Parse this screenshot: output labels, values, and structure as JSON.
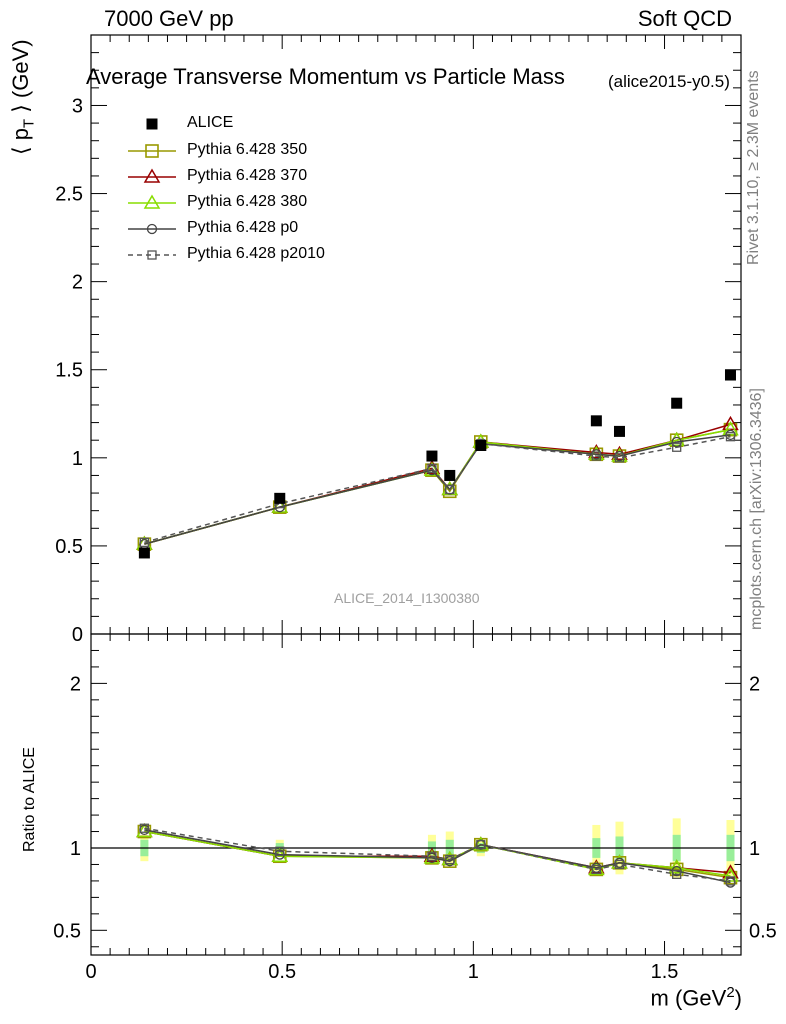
{
  "header": {
    "left": "7000 GeV pp",
    "right": "Soft QCD"
  },
  "title": "Average Transverse Momentum vs Particle Mass",
  "title_tag": "(alice2015-y0.5)",
  "side_text": {
    "rivet": "Rivet 3.1.10, ≥ 2.3M events",
    "mcplots": "mcplots.cern.ch [arXiv:1306.3436]"
  },
  "watermark": "ALICE_2014_I1300380",
  "chart_data": [
    {
      "type": "line",
      "panel": "main",
      "ylabel": "⟨ p_T ⟩ (GeV)",
      "ylim": [
        0,
        3.4
      ],
      "xlim": [
        0,
        1.7
      ],
      "yticks": [
        0,
        0.5,
        1,
        1.5,
        2,
        2.5,
        3
      ],
      "ytick_labels": [
        "0",
        "0.5",
        "1",
        "1.5",
        "2",
        "2.5",
        "3"
      ],
      "legend": {
        "placement": "top-left"
      },
      "x": [
        0.1396,
        0.4937,
        0.8917,
        0.9383,
        1.0195,
        1.3217,
        1.3822,
        1.5318,
        1.6725
      ],
      "data": {
        "name": "ALICE",
        "color": "#000000",
        "values": [
          0.46,
          0.77,
          1.01,
          0.9,
          1.07,
          1.21,
          1.15,
          1.31,
          1.47
        ]
      },
      "series": [
        {
          "name": "Pythia 6.428 350",
          "color": "#999900",
          "marker": "square-open",
          "dashed": false,
          "values": [
            0.51,
            0.72,
            0.93,
            0.81,
            1.09,
            1.02,
            1.01,
            1.1,
            1.16
          ]
        },
        {
          "name": "Pythia 6.428 370",
          "color": "#990000",
          "marker": "triangle-open",
          "dashed": false,
          "values": [
            0.51,
            0.72,
            0.94,
            0.82,
            1.09,
            1.03,
            1.02,
            1.1,
            1.19
          ]
        },
        {
          "name": "Pythia 6.428 380",
          "color": "#88dd00",
          "marker": "triangle-open",
          "dashed": false,
          "values": [
            0.51,
            0.72,
            0.93,
            0.82,
            1.09,
            1.02,
            1.01,
            1.1,
            1.16
          ]
        },
        {
          "name": "Pythia 6.428 p0",
          "color": "#444444",
          "marker": "circle-open",
          "dashed": false,
          "values": [
            0.51,
            0.72,
            0.93,
            0.82,
            1.08,
            1.02,
            1.01,
            1.09,
            1.13
          ]
        },
        {
          "name": "Pythia 6.428 p2010",
          "color": "#555555",
          "marker": "square-small-open",
          "dashed": true,
          "values": [
            0.52,
            0.74,
            0.94,
            0.82,
            1.08,
            1.01,
            1.0,
            1.06,
            1.12
          ]
        }
      ]
    },
    {
      "type": "line",
      "panel": "ratio",
      "ylabel": "Ratio to ALICE",
      "ylim": [
        0.35,
        2.3
      ],
      "yticks": [
        0.5,
        1,
        2
      ],
      "ytick_labels": [
        "0.5",
        "1",
        "2"
      ],
      "xlabel": "m (GeV²)",
      "xticks": [
        0,
        0.5,
        1,
        1.5
      ],
      "xtick_labels": [
        "0",
        "0.5",
        "1",
        "1.5"
      ],
      "x": [
        0.1396,
        0.4937,
        0.8917,
        0.9383,
        1.0195,
        1.3217,
        1.3822,
        1.5318,
        1.6725
      ],
      "band_inner": [
        0.05,
        0.03,
        0.04,
        0.05,
        0.03,
        0.06,
        0.07,
        0.08,
        0.08
      ],
      "band_outer": [
        0.08,
        0.05,
        0.08,
        0.1,
        0.05,
        0.14,
        0.16,
        0.18,
        0.17
      ],
      "series": [
        {
          "name": "Pythia 6.428 350",
          "values": [
            1.1,
            0.95,
            0.94,
            0.92,
            1.02,
            0.87,
            0.91,
            0.87,
            0.82
          ]
        },
        {
          "name": "Pythia 6.428 370",
          "values": [
            1.1,
            0.95,
            0.95,
            0.93,
            1.02,
            0.88,
            0.91,
            0.88,
            0.85
          ]
        },
        {
          "name": "Pythia 6.428 380",
          "values": [
            1.1,
            0.95,
            0.94,
            0.93,
            1.02,
            0.87,
            0.91,
            0.88,
            0.83
          ]
        },
        {
          "name": "Pythia 6.428 p0",
          "values": [
            1.11,
            0.96,
            0.94,
            0.92,
            1.02,
            0.88,
            0.91,
            0.86,
            0.79
          ]
        },
        {
          "name": "Pythia 6.428 p2010",
          "values": [
            1.12,
            0.98,
            0.95,
            0.93,
            1.02,
            0.87,
            0.9,
            0.84,
            0.8
          ]
        }
      ]
    }
  ]
}
